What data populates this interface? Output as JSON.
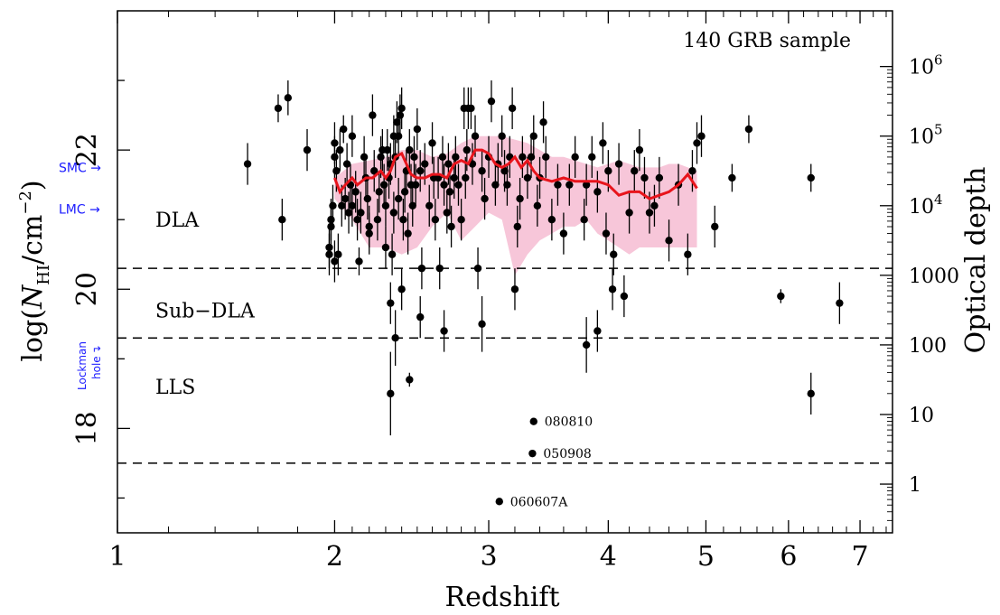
{
  "chart_data": {
    "type": "scatter",
    "sample_label": "140 GRB sample",
    "xlabel": "Redshift",
    "ylabel_prefix": "log(",
    "ylabel_var": "N",
    "ylabel_sub": "HI",
    "ylabel_unit": "/cm",
    "ylabel_sup": "−2",
    "ylabel_close": ")",
    "y2label": "Optical depth",
    "xscale": "log(1+z)",
    "xlim": [
      1,
      7.5
    ],
    "ylim": [
      16.5,
      24
    ],
    "x_ticks": [
      1,
      2,
      3,
      4,
      5,
      6,
      7
    ],
    "x_tick_labels": [
      "1",
      "2",
      "3",
      "4",
      "5",
      "6",
      "7"
    ],
    "y_ticks": [
      18,
      20,
      22
    ],
    "y_tick_labels": [
      "18",
      "20",
      "22"
    ],
    "y2_ticks": [
      {
        "y": 17.2,
        "label": "1",
        "sup": ""
      },
      {
        "y": 18.2,
        "label": "10",
        "sup": ""
      },
      {
        "y": 19.2,
        "label": "100",
        "sup": ""
      },
      {
        "y": 20.2,
        "label": "1000",
        "sup": ""
      },
      {
        "y": 21.2,
        "label": "10",
        "sup": "4"
      },
      {
        "y": 22.2,
        "label": "10",
        "sup": "5"
      },
      {
        "y": 23.2,
        "label": "10",
        "sup": "6"
      }
    ],
    "regions": [
      {
        "label": "DLA",
        "y": 21.0
      },
      {
        "label": "Sub−DLA",
        "y": 19.7
      },
      {
        "label": "LLS",
        "y": 18.6
      }
    ],
    "thresholds": [
      20.3,
      19.3,
      17.5
    ],
    "side_markers": [
      {
        "label": "SMC",
        "arrow": "→",
        "y": 21.75
      },
      {
        "label": "LMC",
        "arrow": "→",
        "y": 21.15
      }
    ],
    "lockman_label": "Lockman",
    "lockman_sub": "hole",
    "lockman_arrow": "↴",
    "annotated": [
      {
        "label": "080810",
        "z": 3.35,
        "y": 18.1
      },
      {
        "label": "050908",
        "z": 3.34,
        "y": 17.64
      },
      {
        "label": "060607A",
        "z": 3.08,
        "y": 16.95
      }
    ],
    "points": [
      [
        1.55,
        21.8,
        0.3
      ],
      [
        1.7,
        22.6,
        0.2
      ],
      [
        1.75,
        22.75,
        0.25
      ],
      [
        1.72,
        21.0,
        0.3
      ],
      [
        1.85,
        22.0,
        0.3
      ],
      [
        1.97,
        20.6,
        0.3
      ],
      [
        1.97,
        20.5,
        0.3
      ],
      [
        1.98,
        20.9,
        0.3
      ],
      [
        1.99,
        21.2,
        0.3
      ],
      [
        2.0,
        20.4,
        0.3
      ],
      [
        2.0,
        21.9,
        0.3
      ],
      [
        2.0,
        22.1,
        0.3
      ],
      [
        2.01,
        21.7,
        0.3
      ],
      [
        2.02,
        20.5,
        0.3
      ],
      [
        2.03,
        22.0,
        0.3
      ],
      [
        2.04,
        21.2,
        0.3
      ],
      [
        2.05,
        22.3,
        0.2
      ],
      [
        2.06,
        21.3,
        0.3
      ],
      [
        2.07,
        21.8,
        0.3
      ],
      [
        2.08,
        21.1,
        0.3
      ],
      [
        2.09,
        21.5,
        0.3
      ],
      [
        2.1,
        21.2,
        0.3
      ],
      [
        2.1,
        22.2,
        0.3
      ],
      [
        2.12,
        21.4,
        0.3
      ],
      [
        2.13,
        21.0,
        0.3
      ],
      [
        2.14,
        20.4,
        0.2
      ],
      [
        2.17,
        21.9,
        0.3
      ],
      [
        2.18,
        21.6,
        0.3
      ],
      [
        2.19,
        21.3,
        0.3
      ],
      [
        2.2,
        20.8,
        0.3
      ],
      [
        2.22,
        22.5,
        0.3
      ],
      [
        2.23,
        21.7,
        0.3
      ],
      [
        2.25,
        21.0,
        0.3
      ],
      [
        2.26,
        21.4,
        0.3
      ],
      [
        2.27,
        21.9,
        0.3
      ],
      [
        2.28,
        22.0,
        0.3
      ],
      [
        2.29,
        21.5,
        0.3
      ],
      [
        2.3,
        21.2,
        0.3
      ],
      [
        2.3,
        20.6,
        0.3
      ],
      [
        2.31,
        22.0,
        0.3
      ],
      [
        2.32,
        21.6,
        0.3
      ],
      [
        2.33,
        21.8,
        0.3
      ],
      [
        2.34,
        20.5,
        0.3
      ],
      [
        2.35,
        22.2,
        0.3
      ],
      [
        2.36,
        21.9,
        0.3
      ],
      [
        2.37,
        22.4,
        0.3
      ],
      [
        2.38,
        22.2,
        0.3
      ],
      [
        2.38,
        21.3,
        0.3
      ],
      [
        2.39,
        22.5,
        0.3
      ],
      [
        2.4,
        22.6,
        0.3
      ],
      [
        2.4,
        20.0,
        0.3
      ],
      [
        2.41,
        21.0,
        0.3
      ],
      [
        2.42,
        21.4,
        0.3
      ],
      [
        2.43,
        21.7,
        0.3
      ],
      [
        2.44,
        20.8,
        0.3
      ],
      [
        2.45,
        22.0,
        0.3
      ],
      [
        2.46,
        21.5,
        0.3
      ],
      [
        2.47,
        21.2,
        0.3
      ],
      [
        2.48,
        21.9,
        0.3
      ],
      [
        2.49,
        21.5,
        0.3
      ],
      [
        2.5,
        22.3,
        0.3
      ],
      [
        2.52,
        21.7,
        0.3
      ],
      [
        2.53,
        20.3,
        0.3
      ],
      [
        2.55,
        21.8,
        0.3
      ],
      [
        2.58,
        21.2,
        0.3
      ],
      [
        2.6,
        22.1,
        0.3
      ],
      [
        2.61,
        21.6,
        0.3
      ],
      [
        2.62,
        21.0,
        0.3
      ],
      [
        2.64,
        21.6,
        0.3
      ],
      [
        2.65,
        20.3,
        0.3
      ],
      [
        2.67,
        21.9,
        0.3
      ],
      [
        2.68,
        21.5,
        0.3
      ],
      [
        2.7,
        21.1,
        0.3
      ],
      [
        2.71,
        21.8,
        0.3
      ],
      [
        2.72,
        21.4,
        0.3
      ],
      [
        2.73,
        20.9,
        0.3
      ],
      [
        2.75,
        21.6,
        0.3
      ],
      [
        2.76,
        21.9,
        0.3
      ],
      [
        2.78,
        21.5,
        0.3
      ],
      [
        2.8,
        21.0,
        0.3
      ],
      [
        2.82,
        22.6,
        0.3
      ],
      [
        2.83,
        21.6,
        0.3
      ],
      [
        2.84,
        22.0,
        0.3
      ],
      [
        2.85,
        22.6,
        0.3
      ],
      [
        2.87,
        22.6,
        0.3
      ],
      [
        2.88,
        21.8,
        0.3
      ],
      [
        2.9,
        22.2,
        0.3
      ],
      [
        2.92,
        20.3,
        0.3
      ],
      [
        2.95,
        21.7,
        0.3
      ],
      [
        2.97,
        21.3,
        0.3
      ],
      [
        3.0,
        21.9,
        0.3
      ],
      [
        3.02,
        22.7,
        0.3
      ],
      [
        3.05,
        21.5,
        0.3
      ],
      [
        3.07,
        21.8,
        0.3
      ],
      [
        3.1,
        22.2,
        0.3
      ],
      [
        3.12,
        21.7,
        0.3
      ],
      [
        3.14,
        21.5,
        0.3
      ],
      [
        3.16,
        21.9,
        0.3
      ],
      [
        3.18,
        22.6,
        0.3
      ],
      [
        3.2,
        20.0,
        0.3
      ],
      [
        3.22,
        20.9,
        0.3
      ],
      [
        3.24,
        21.3,
        0.3
      ],
      [
        3.26,
        21.9,
        0.3
      ],
      [
        3.3,
        21.6,
        0.3
      ],
      [
        3.33,
        21.9,
        0.3
      ],
      [
        3.35,
        22.2,
        0.3
      ],
      [
        3.38,
        21.2,
        0.3
      ],
      [
        3.4,
        21.6,
        0.3
      ],
      [
        3.43,
        22.4,
        0.3
      ],
      [
        3.45,
        21.9,
        0.3
      ],
      [
        3.5,
        21.0,
        0.3
      ],
      [
        3.55,
        21.5,
        0.3
      ],
      [
        3.6,
        20.8,
        0.3
      ],
      [
        3.65,
        21.5,
        0.3
      ],
      [
        3.7,
        21.9,
        0.3
      ],
      [
        3.78,
        21.0,
        0.3
      ],
      [
        3.8,
        21.5,
        0.3
      ],
      [
        3.85,
        21.9,
        0.3
      ],
      [
        3.9,
        21.4,
        0.3
      ],
      [
        3.95,
        22.1,
        0.3
      ],
      [
        3.98,
        20.8,
        0.3
      ],
      [
        4.0,
        21.7,
        0.3
      ],
      [
        4.04,
        20.0,
        0.3
      ],
      [
        4.05,
        20.5,
        0.3
      ],
      [
        4.1,
        21.8,
        0.3
      ],
      [
        4.15,
        19.9,
        0.3
      ],
      [
        4.2,
        21.1,
        0.3
      ],
      [
        4.25,
        21.7,
        0.3
      ],
      [
        4.3,
        22.0,
        0.3
      ],
      [
        4.35,
        21.6,
        0.3
      ],
      [
        4.4,
        21.1,
        0.3
      ],
      [
        4.45,
        21.2,
        0.3
      ],
      [
        4.5,
        21.6,
        0.3
      ],
      [
        4.6,
        20.7,
        0.3
      ],
      [
        4.7,
        21.5,
        0.3
      ],
      [
        4.8,
        20.5,
        0.3
      ],
      [
        4.85,
        21.7,
        0.3
      ],
      [
        4.9,
        22.1,
        0.3
      ],
      [
        4.95,
        22.2,
        0.3
      ],
      [
        5.1,
        20.9,
        0.3
      ],
      [
        5.3,
        21.6,
        0.2
      ],
      [
        5.5,
        22.3,
        0.2
      ],
      [
        2.2,
        20.9,
        0.3
      ],
      [
        2.15,
        21.1,
        0.3
      ],
      [
        2.35,
        21.1,
        0.3
      ],
      [
        2.33,
        19.8,
        0.3
      ],
      [
        2.52,
        19.6,
        0.3
      ],
      [
        2.68,
        19.4,
        0.3
      ],
      [
        2.95,
        19.5,
        0.4
      ],
      [
        3.9,
        19.4,
        0.3
      ],
      [
        2.33,
        18.5,
        0.6
      ],
      [
        2.36,
        19.3,
        0.4
      ],
      [
        2.45,
        18.7,
        0.1
      ],
      [
        3.8,
        19.2,
        0.4
      ],
      [
        5.9,
        19.9,
        0.1
      ],
      [
        6.3,
        18.5,
        0.3
      ],
      [
        6.3,
        21.6,
        0.2
      ],
      [
        6.7,
        19.8,
        0.3
      ],
      [
        1.98,
        21.0,
        0.3
      ]
    ],
    "median_line": [
      [
        2.0,
        21.6
      ],
      [
        2.03,
        21.4
      ],
      [
        2.06,
        21.5
      ],
      [
        2.1,
        21.6
      ],
      [
        2.13,
        21.5
      ],
      [
        2.18,
        21.6
      ],
      [
        2.22,
        21.6
      ],
      [
        2.27,
        21.7
      ],
      [
        2.3,
        21.6
      ],
      [
        2.33,
        21.7
      ],
      [
        2.36,
        21.9
      ],
      [
        2.4,
        21.95
      ],
      [
        2.43,
        21.8
      ],
      [
        2.46,
        21.65
      ],
      [
        2.5,
        21.6
      ],
      [
        2.55,
        21.6
      ],
      [
        2.6,
        21.65
      ],
      [
        2.65,
        21.65
      ],
      [
        2.7,
        21.6
      ],
      [
        2.75,
        21.8
      ],
      [
        2.8,
        21.85
      ],
      [
        2.85,
        21.8
      ],
      [
        2.9,
        22.0
      ],
      [
        2.95,
        22.0
      ],
      [
        3.0,
        21.95
      ],
      [
        3.05,
        21.8
      ],
      [
        3.1,
        21.75
      ],
      [
        3.15,
        21.8
      ],
      [
        3.2,
        21.9
      ],
      [
        3.25,
        21.75
      ],
      [
        3.3,
        21.85
      ],
      [
        3.35,
        21.7
      ],
      [
        3.4,
        21.6
      ],
      [
        3.5,
        21.55
      ],
      [
        3.6,
        21.6
      ],
      [
        3.7,
        21.55
      ],
      [
        3.8,
        21.55
      ],
      [
        3.9,
        21.55
      ],
      [
        4.0,
        21.5
      ],
      [
        4.1,
        21.35
      ],
      [
        4.2,
        21.4
      ],
      [
        4.3,
        21.4
      ],
      [
        4.4,
        21.3
      ],
      [
        4.5,
        21.35
      ],
      [
        4.6,
        21.4
      ],
      [
        4.7,
        21.5
      ],
      [
        4.8,
        21.65
      ],
      [
        4.9,
        21.45
      ]
    ],
    "band_upper": [
      [
        2.0,
        21.6
      ],
      [
        2.1,
        21.8
      ],
      [
        2.2,
        21.85
      ],
      [
        2.3,
        21.9
      ],
      [
        2.4,
        22.0
      ],
      [
        2.5,
        22.0
      ],
      [
        2.6,
        21.9
      ],
      [
        2.7,
        21.95
      ],
      [
        2.8,
        22.1
      ],
      [
        2.9,
        22.2
      ],
      [
        3.0,
        22.2
      ],
      [
        3.1,
        22.2
      ],
      [
        3.2,
        22.15
      ],
      [
        3.3,
        22.1
      ],
      [
        3.4,
        22.0
      ],
      [
        3.5,
        21.9
      ],
      [
        3.6,
        21.9
      ],
      [
        3.7,
        21.85
      ],
      [
        3.8,
        21.8
      ],
      [
        3.9,
        21.75
      ],
      [
        4.0,
        21.8
      ],
      [
        4.1,
        21.85
      ],
      [
        4.2,
        21.8
      ],
      [
        4.3,
        21.75
      ],
      [
        4.4,
        21.75
      ],
      [
        4.5,
        21.75
      ],
      [
        4.6,
        21.8
      ],
      [
        4.7,
        21.8
      ],
      [
        4.8,
        21.75
      ],
      [
        4.9,
        21.7
      ]
    ],
    "band_lower": [
      [
        2.0,
        21.3
      ],
      [
        2.1,
        21.0
      ],
      [
        2.2,
        20.6
      ],
      [
        2.3,
        20.6
      ],
      [
        2.4,
        20.5
      ],
      [
        2.5,
        20.6
      ],
      [
        2.6,
        20.9
      ],
      [
        2.7,
        21.1
      ],
      [
        2.8,
        20.7
      ],
      [
        2.9,
        20.9
      ],
      [
        3.0,
        21.1
      ],
      [
        3.1,
        21.0
      ],
      [
        3.2,
        20.2
      ],
      [
        3.3,
        20.5
      ],
      [
        3.4,
        20.7
      ],
      [
        3.5,
        20.8
      ],
      [
        3.6,
        20.9
      ],
      [
        3.7,
        20.9
      ],
      [
        3.8,
        21.0
      ],
      [
        3.9,
        20.8
      ],
      [
        4.0,
        20.7
      ],
      [
        4.1,
        20.6
      ],
      [
        4.2,
        20.5
      ],
      [
        4.3,
        20.6
      ],
      [
        4.4,
        20.6
      ],
      [
        4.5,
        20.6
      ],
      [
        4.6,
        20.6
      ],
      [
        4.7,
        20.6
      ],
      [
        4.8,
        20.6
      ],
      [
        4.9,
        20.6
      ]
    ],
    "grid": false
  }
}
